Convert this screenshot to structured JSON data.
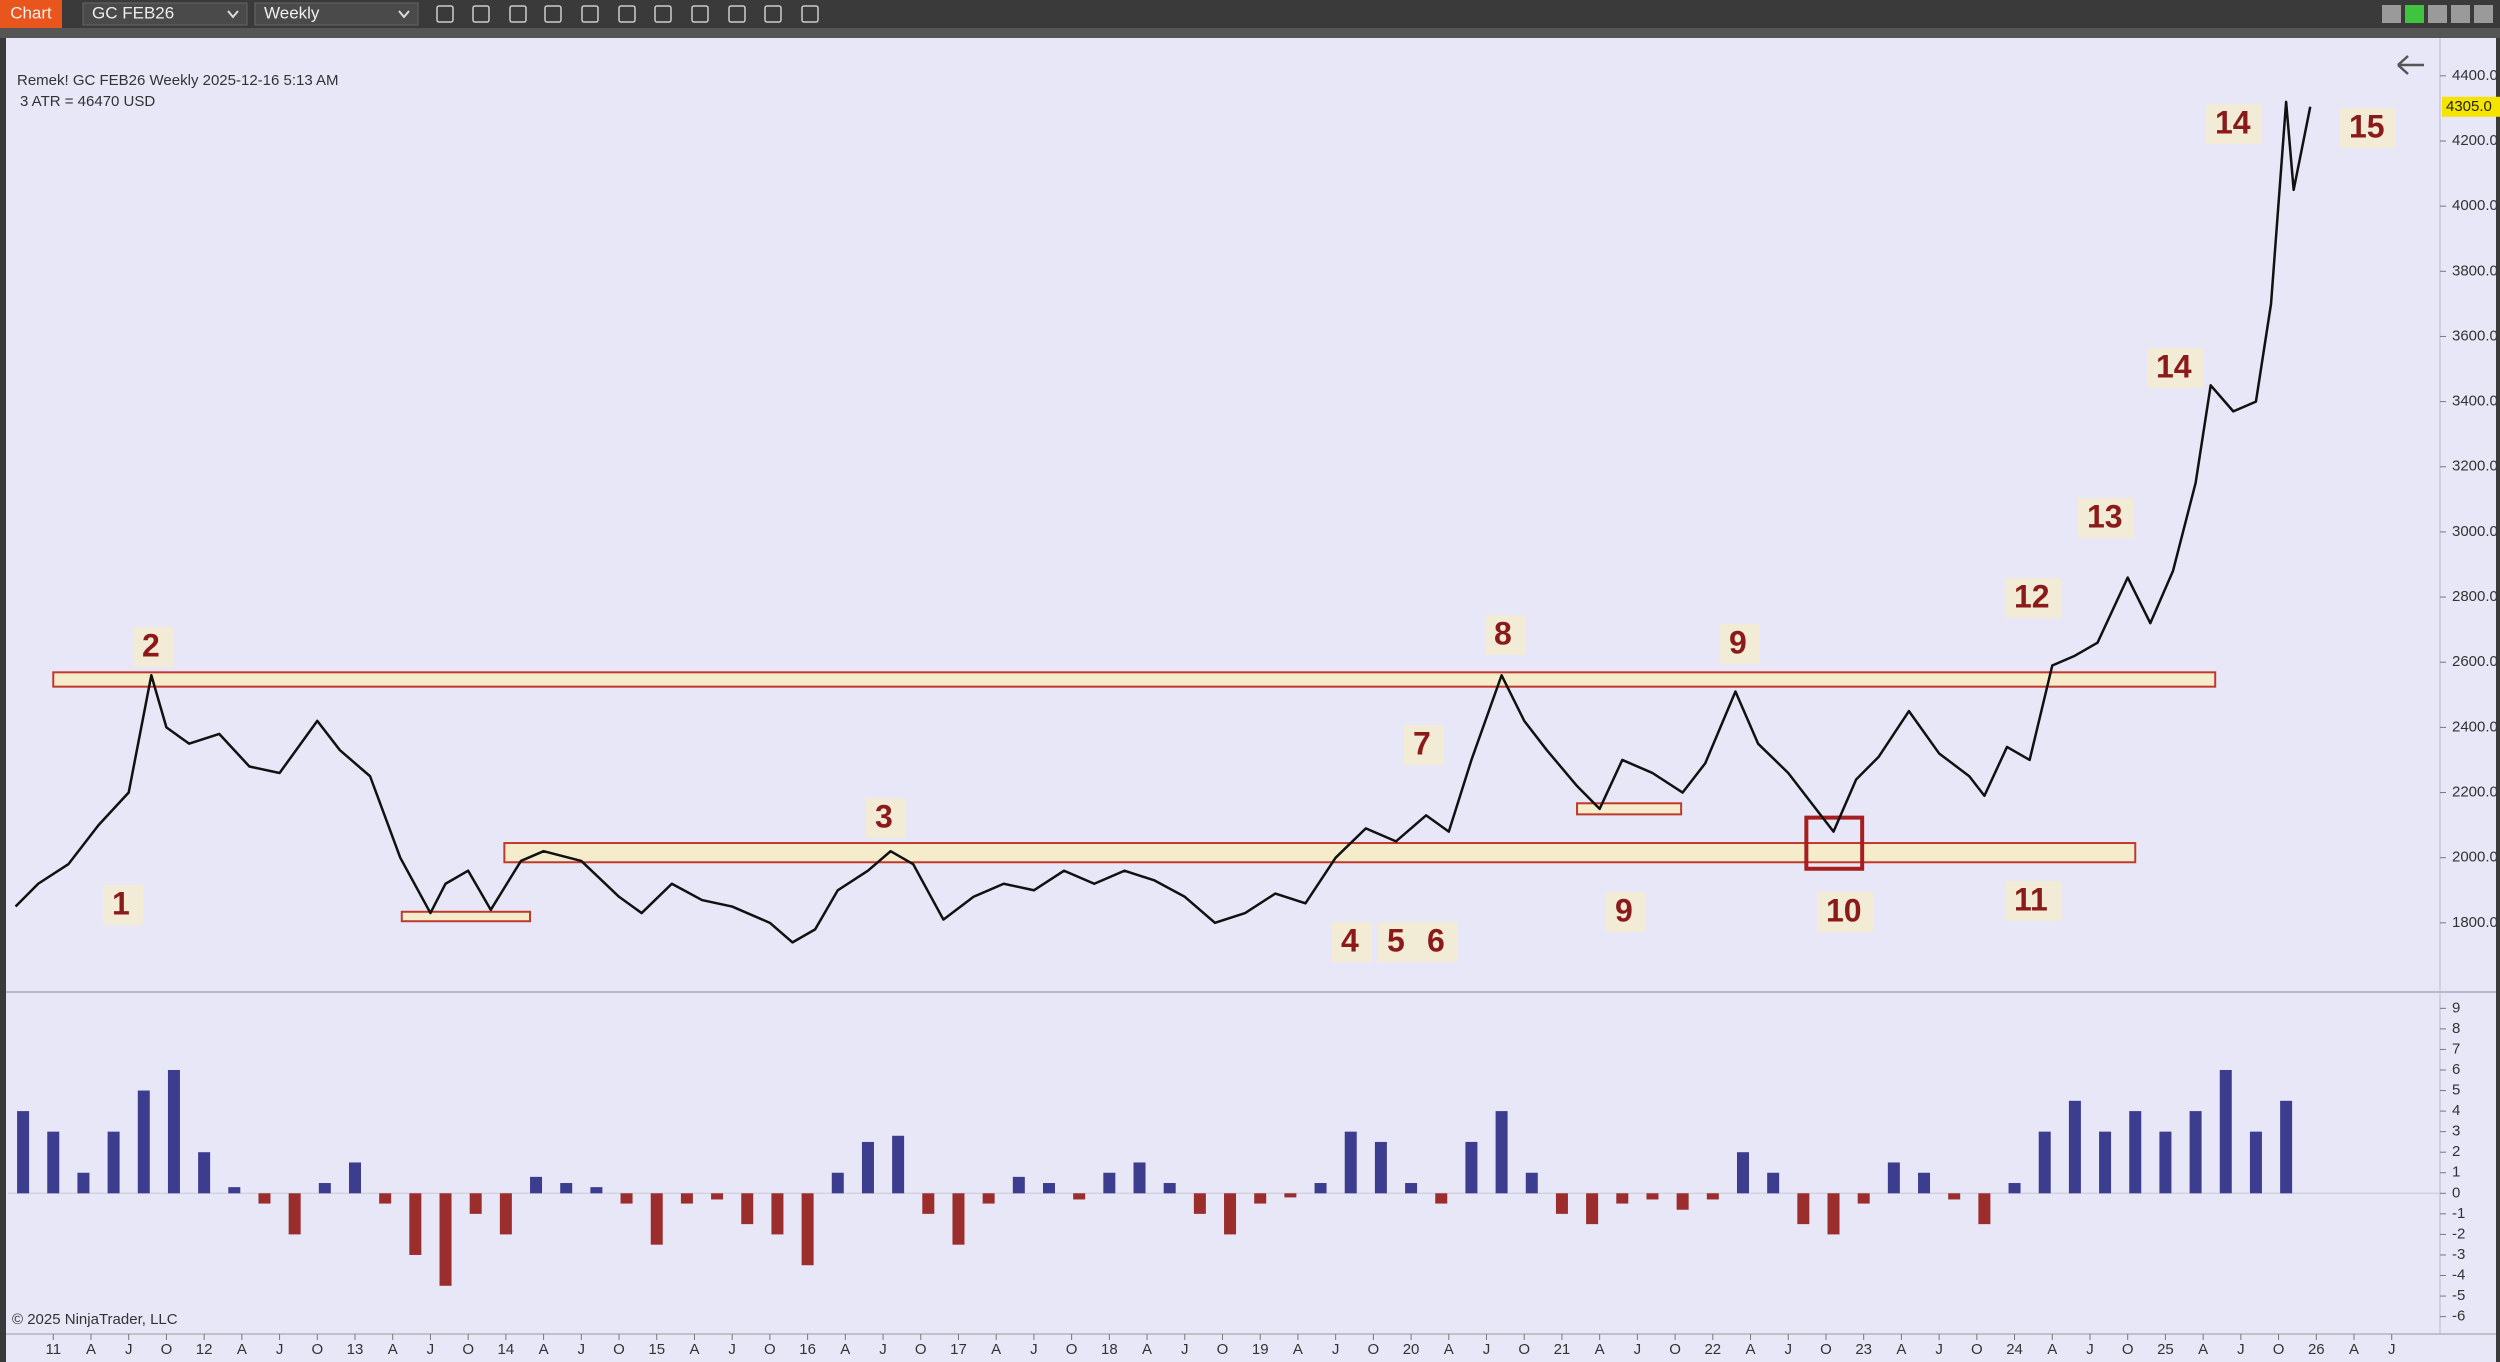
{
  "toolbar": {
    "tab": "Chart",
    "instrument": "GC FEB26",
    "period": "Weekly"
  },
  "chart_data": [
    {
      "type": "line",
      "header": "Remek!  GC FEB26  Weekly  2025-12-16 5:13 AM",
      "subheader": "3 ATR = 46470 USD",
      "xlim": [
        2010.7,
        2026.82
      ],
      "xticks": [
        {
          "value": 2011,
          "label": "11"
        },
        {
          "value": 2011.25,
          "label": "A"
        },
        {
          "value": 2011.5,
          "label": "J"
        },
        {
          "value": 2011.75,
          "label": "O"
        },
        {
          "value": 2012,
          "label": "12"
        },
        {
          "value": 2012.25,
          "label": "A"
        },
        {
          "value": 2012.5,
          "label": "J"
        },
        {
          "value": 2012.75,
          "label": "O"
        },
        {
          "value": 2013,
          "label": "13"
        },
        {
          "value": 2013.25,
          "label": "A"
        },
        {
          "value": 2013.5,
          "label": "J"
        },
        {
          "value": 2013.75,
          "label": "O"
        },
        {
          "value": 2014,
          "label": "14"
        },
        {
          "value": 2014.25,
          "label": "A"
        },
        {
          "value": 2014.5,
          "label": "J"
        },
        {
          "value": 2014.75,
          "label": "O"
        },
        {
          "value": 2015,
          "label": "15"
        },
        {
          "value": 2015.25,
          "label": "A"
        },
        {
          "value": 2015.5,
          "label": "J"
        },
        {
          "value": 2015.75,
          "label": "O"
        },
        {
          "value": 2016,
          "label": "16"
        },
        {
          "value": 2016.25,
          "label": "A"
        },
        {
          "value": 2016.5,
          "label": "J"
        },
        {
          "value": 2016.75,
          "label": "O"
        },
        {
          "value": 2017,
          "label": "17"
        },
        {
          "value": 2017.25,
          "label": "A"
        },
        {
          "value": 2017.5,
          "label": "J"
        },
        {
          "value": 2017.75,
          "label": "O"
        },
        {
          "value": 2018,
          "label": "18"
        },
        {
          "value": 2018.25,
          "label": "A"
        },
        {
          "value": 2018.5,
          "label": "J"
        },
        {
          "value": 2018.75,
          "label": "O"
        },
        {
          "value": 2019,
          "label": "19"
        },
        {
          "value": 2019.25,
          "label": "A"
        },
        {
          "value": 2019.5,
          "label": "J"
        },
        {
          "value": 2019.75,
          "label": "O"
        },
        {
          "value": 2020,
          "label": "20"
        },
        {
          "value": 2020.25,
          "label": "A"
        },
        {
          "value": 2020.5,
          "label": "J"
        },
        {
          "value": 2020.75,
          "label": "O"
        },
        {
          "value": 2021,
          "label": "21"
        },
        {
          "value": 2021.25,
          "label": "A"
        },
        {
          "value": 2021.5,
          "label": "J"
        },
        {
          "value": 2021.75,
          "label": "O"
        },
        {
          "value": 2022,
          "label": "22"
        },
        {
          "value": 2022.25,
          "label": "A"
        },
        {
          "value": 2022.5,
          "label": "J"
        },
        {
          "value": 2022.75,
          "label": "O"
        },
        {
          "value": 2023,
          "label": "23"
        },
        {
          "value": 2023.25,
          "label": "A"
        },
        {
          "value": 2023.5,
          "label": "J"
        },
        {
          "value": 2023.75,
          "label": "O"
        },
        {
          "value": 2024,
          "label": "24"
        },
        {
          "value": 2024.25,
          "label": "A"
        },
        {
          "value": 2024.5,
          "label": "J"
        },
        {
          "value": 2024.75,
          "label": "O"
        },
        {
          "value": 2025,
          "label": "25"
        },
        {
          "value": 2025.25,
          "label": "A"
        },
        {
          "value": 2025.5,
          "label": "J"
        },
        {
          "value": 2025.75,
          "label": "O"
        },
        {
          "value": 2026,
          "label": "26"
        },
        {
          "value": 2026.25,
          "label": "A"
        },
        {
          "value": 2026.5,
          "label": "J"
        }
      ],
      "ylim": [
        1600,
        4510
      ],
      "yticks": [
        {
          "value": 1800,
          "label": "1800.0"
        },
        {
          "value": 2000,
          "label": "2000.0"
        },
        {
          "value": 2200,
          "label": "2200.0"
        },
        {
          "value": 2400,
          "label": "2400.0"
        },
        {
          "value": 2600,
          "label": "2600.0"
        },
        {
          "value": 2800,
          "label": "2800.0"
        },
        {
          "value": 3000,
          "label": "3000.0"
        },
        {
          "value": 3200,
          "label": "3200.0"
        },
        {
          "value": 3400,
          "label": "3400.0"
        },
        {
          "value": 3600,
          "label": "3600.0"
        },
        {
          "value": 3800,
          "label": "3800.0"
        },
        {
          "value": 4000,
          "label": "4000.0"
        },
        {
          "value": 4200,
          "label": "4200.0"
        },
        {
          "value": 4400,
          "label": "4400.0"
        }
      ],
      "series": [
        {
          "color": "#111111",
          "x": [
            2010.75,
            2010.9,
            2011.1,
            2011.3,
            2011.5,
            2011.65,
            2011.75,
            2011.9,
            2012.1,
            2012.3,
            2012.5,
            2012.75,
            2012.9,
            2013.1,
            2013.3,
            2013.5,
            2013.6,
            2013.75,
            2013.9,
            2014.1,
            2014.25,
            2014.5,
            2014.75,
            2014.9,
            2015.1,
            2015.3,
            2015.5,
            2015.75,
            2015.9,
            2016.05,
            2016.2,
            2016.4,
            2016.55,
            2016.7,
            2016.9,
            2017.1,
            2017.3,
            2017.5,
            2017.7,
            2017.9,
            2018.1,
            2018.3,
            2018.5,
            2018.7,
            2018.9,
            2019.1,
            2019.3,
            2019.5,
            2019.7,
            2019.9,
            2020.1,
            2020.25,
            2020.4,
            2020.6,
            2020.75,
            2020.9,
            2021.1,
            2021.25,
            2021.4,
            2021.6,
            2021.8,
            2021.95,
            2022.15,
            2022.3,
            2022.5,
            2022.7,
            2022.8,
            2022.95,
            2023.1,
            2023.3,
            2023.5,
            2023.7,
            2023.8,
            2023.95,
            2024.1,
            2024.25,
            2024.4,
            2024.55,
            2024.75,
            2024.9,
            2025.05,
            2025.2,
            2025.3,
            2025.45,
            2025.6,
            2025.7,
            2025.8,
            2025.85,
            2025.96
          ],
          "values": [
            1850,
            1920,
            1980,
            2100,
            2200,
            2560,
            2400,
            2350,
            2380,
            2280,
            2260,
            2420,
            2330,
            2250,
            2000,
            1830,
            1920,
            1960,
            1840,
            1990,
            2020,
            1990,
            1880,
            1830,
            1920,
            1870,
            1850,
            1800,
            1740,
            1780,
            1900,
            1960,
            2020,
            1980,
            1810,
            1880,
            1920,
            1900,
            1960,
            1920,
            1960,
            1930,
            1880,
            1800,
            1830,
            1890,
            1860,
            2000,
            2090,
            2050,
            2130,
            2080,
            2300,
            2560,
            2420,
            2330,
            2220,
            2150,
            2300,
            2260,
            2200,
            2290,
            2510,
            2350,
            2260,
            2140,
            2080,
            2240,
            2310,
            2450,
            2320,
            2250,
            2190,
            2340,
            2300,
            2590,
            2620,
            2660,
            2860,
            2720,
            2880,
            3150,
            3450,
            3370,
            3400,
            3700,
            4320,
            4050,
            4305
          ]
        }
      ],
      "zones": [
        {
          "x": [
            2011.0,
            2025.33
          ],
          "y": [
            2525,
            2569
          ],
          "color": "#c0392b",
          "fill": "#f6ecc6"
        },
        {
          "x": [
            2013.99,
            2024.8
          ],
          "y": [
            1986,
            2045
          ],
          "color": "#c0392b",
          "fill": "#f6ecc6"
        },
        {
          "x": [
            2013.31,
            2014.16
          ],
          "y": [
            1805,
            1834
          ],
          "color": "#c0392b",
          "fill": "#f6ecc6"
        },
        {
          "x": [
            2021.1,
            2021.79
          ],
          "y": [
            2133,
            2167
          ],
          "color": "#c0392b",
          "fill": "#f6ecc6"
        },
        {
          "x": [
            2022.62,
            2022.99
          ],
          "y": [
            1966,
            2123
          ],
          "color": "#a61e1e",
          "fill": "none"
        }
      ],
      "last_price": {
        "value": 4305,
        "label": "4305.0"
      },
      "annotations": [
        "1",
        "2",
        "3",
        "4",
        "5",
        "6",
        "7",
        "8",
        "9",
        "9",
        "10",
        "11",
        "12",
        "13",
        "14",
        "14",
        "15"
      ]
    },
    {
      "type": "bar",
      "xlim": [
        2010.7,
        2026.82
      ],
      "ylim": [
        -6.7,
        9.6
      ],
      "yticks": [
        -6,
        -5,
        -4,
        -3,
        -2,
        -1,
        0,
        1,
        2,
        3,
        4,
        5,
        6,
        7,
        8,
        9
      ],
      "pos_color": "#3d3d8f",
      "neg_color": "#9b2d2d",
      "x": [
        2010.8,
        2011,
        2011.2,
        2011.4,
        2011.6,
        2011.8,
        2012,
        2012.2,
        2012.4,
        2012.6,
        2012.8,
        2013,
        2013.2,
        2013.4,
        2013.6,
        2013.8,
        2014,
        2014.2,
        2014.4,
        2014.6,
        2014.8,
        2015,
        2015.2,
        2015.4,
        2015.6,
        2015.8,
        2016,
        2016.2,
        2016.4,
        2016.6,
        2016.8,
        2017,
        2017.2,
        2017.4,
        2017.6,
        2017.8,
        2018,
        2018.2,
        2018.4,
        2018.6,
        2018.8,
        2019,
        2019.2,
        2019.4,
        2019.6,
        2019.8,
        2020,
        2020.2,
        2020.4,
        2020.6,
        2020.8,
        2021,
        2021.2,
        2021.4,
        2021.6,
        2021.8,
        2022,
        2022.2,
        2022.4,
        2022.6,
        2022.8,
        2023,
        2023.2,
        2023.4,
        2023.6,
        2023.8,
        2024,
        2024.2,
        2024.4,
        2024.6,
        2024.8,
        2025,
        2025.2,
        2025.4,
        2025.6,
        2025.8
      ],
      "values": [
        4,
        3,
        1,
        3,
        5,
        6,
        2,
        0.3,
        -0.5,
        -2,
        0.5,
        1.5,
        -0.5,
        -3,
        -4.5,
        -1,
        -2,
        0.8,
        0.5,
        0.3,
        -0.5,
        -2.5,
        -0.5,
        -0.3,
        -1.5,
        -2,
        -3.5,
        1,
        2.5,
        2.8,
        -1,
        -2.5,
        -0.5,
        0.8,
        0.5,
        -0.3,
        1,
        1.5,
        0.5,
        -1,
        -2,
        -0.5,
        -0.2,
        0.5,
        3,
        2.5,
        0.5,
        -0.5,
        2.5,
        4,
        1,
        -1,
        -1.5,
        -0.5,
        -0.3,
        -0.8,
        -0.3,
        2,
        1,
        -1.5,
        -2,
        -0.5,
        1.5,
        1,
        -0.3,
        -1.5,
        0.5,
        3,
        4.5,
        3,
        4,
        3,
        4,
        6,
        3,
        4.5
      ]
    }
  ],
  "copyright": "© 2025 NinjaTrader, LLC"
}
